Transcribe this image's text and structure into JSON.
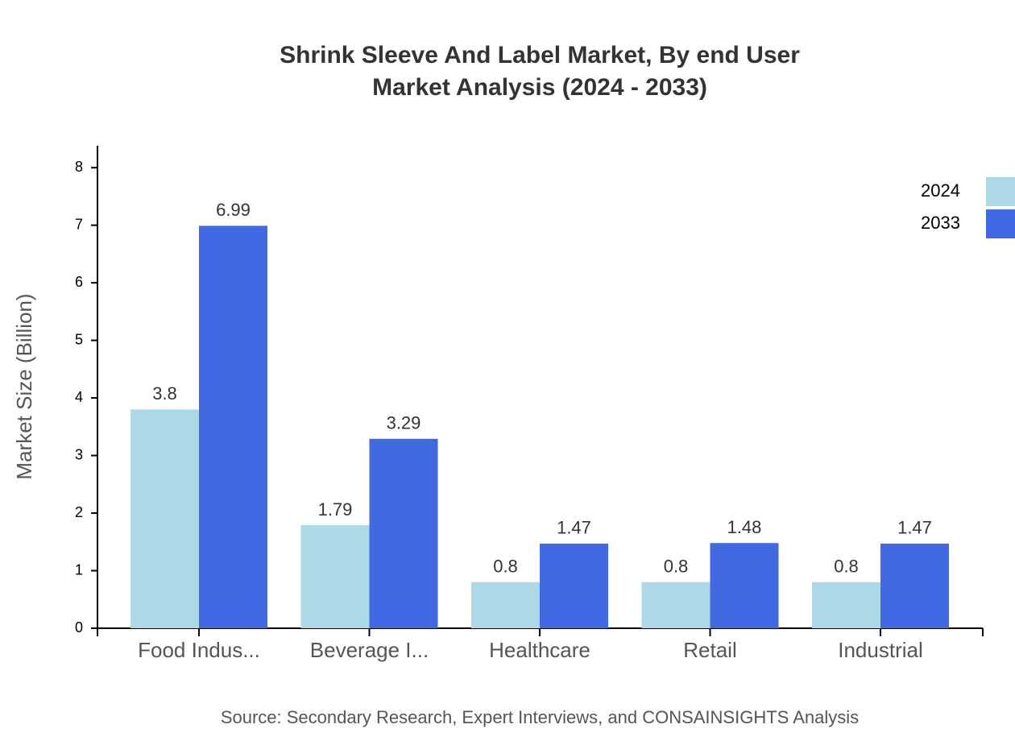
{
  "chart_data": {
    "type": "bar",
    "title": "Shrink Sleeve And Label Market, By end User",
    "subtitle": "Market Analysis (2024 - 2033)",
    "y_label": "Market Size (Billion)",
    "source": "Source: Secondary Research, Expert Interviews, and CONSAINSIGHTS Analysis",
    "categories": [
      "Food Indus...",
      "Beverage I...",
      "Healthcare",
      "Retail",
      "Industrial"
    ],
    "series": [
      {
        "name": "2024",
        "color": "#add8e6",
        "values": [
          3.8,
          1.79,
          0.8,
          0.8,
          0.8
        ]
      },
      {
        "name": "2033",
        "color": "#4169e1",
        "values": [
          6.99,
          3.29,
          1.47,
          1.48,
          1.47
        ]
      }
    ],
    "ylim": [
      0,
      8.38
    ],
    "yticks": [
      0,
      1,
      2,
      3,
      4,
      5,
      6,
      7,
      8
    ],
    "grid": false,
    "legend": "top-right"
  }
}
